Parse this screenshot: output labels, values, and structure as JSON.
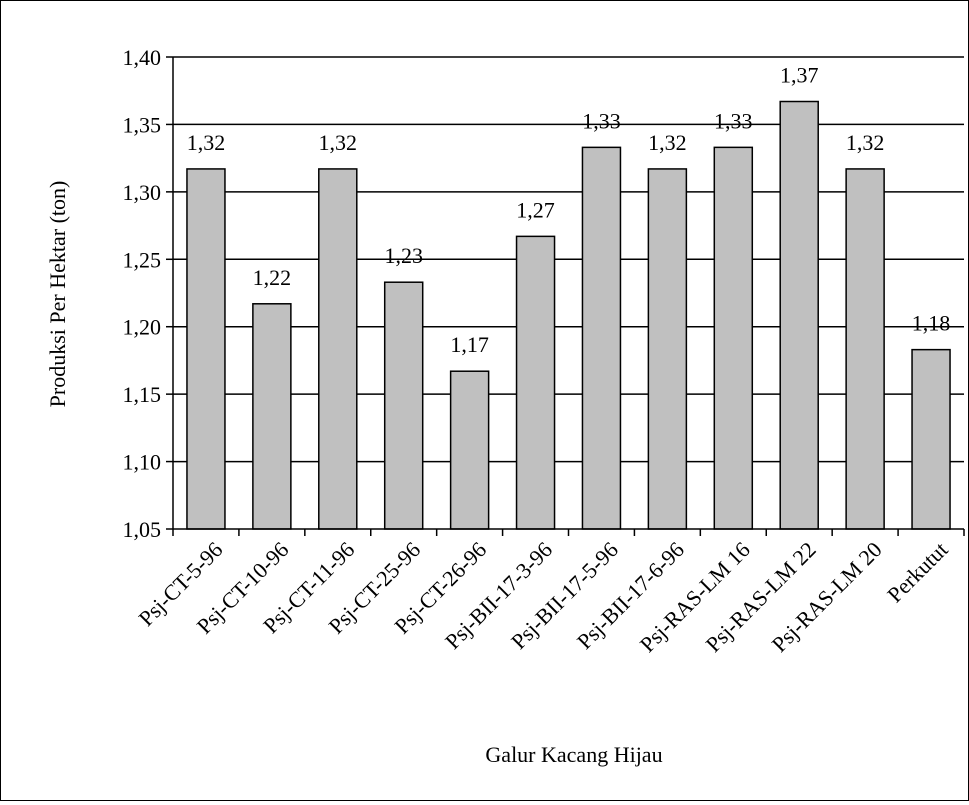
{
  "chart_data": {
    "type": "bar",
    "title": "",
    "xlabel": "Galur Kacang Hijau",
    "ylabel": "Produksi Per Hektar (ton)",
    "ylim": [
      1.05,
      1.4
    ],
    "ytick_step": 0.05,
    "ytick_labels": [
      "1,05",
      "1,10",
      "1,15",
      "1,20",
      "1,25",
      "1,30",
      "1,35",
      "1,40"
    ],
    "grid": true,
    "legend": "none",
    "bar_color": "#c0c0c0",
    "categories": [
      "Psj-CT-5-96",
      "Psj-CT-10-96",
      "Psj-CT-11-96",
      "Psj-CT-25-96",
      "Psj-CT-26-96",
      "Psj-BII-17-3-96",
      "Psj-BII-17-5-96",
      "Psj-BII-17-6-96",
      "Psj-RAS-LM 16",
      "Psj-RAS-LM 22",
      "Psj-RAS-LM 20",
      "Perkutut"
    ],
    "values": [
      1.317,
      1.217,
      1.317,
      1.233,
      1.167,
      1.267,
      1.333,
      1.317,
      1.333,
      1.367,
      1.317,
      1.183
    ],
    "data_labels": [
      "1,32",
      "1,22",
      "1,32",
      "1,23",
      "1,17",
      "1,27",
      "1,33",
      "1,32",
      "1,33",
      "1,37",
      "1,32",
      "1,18"
    ]
  }
}
